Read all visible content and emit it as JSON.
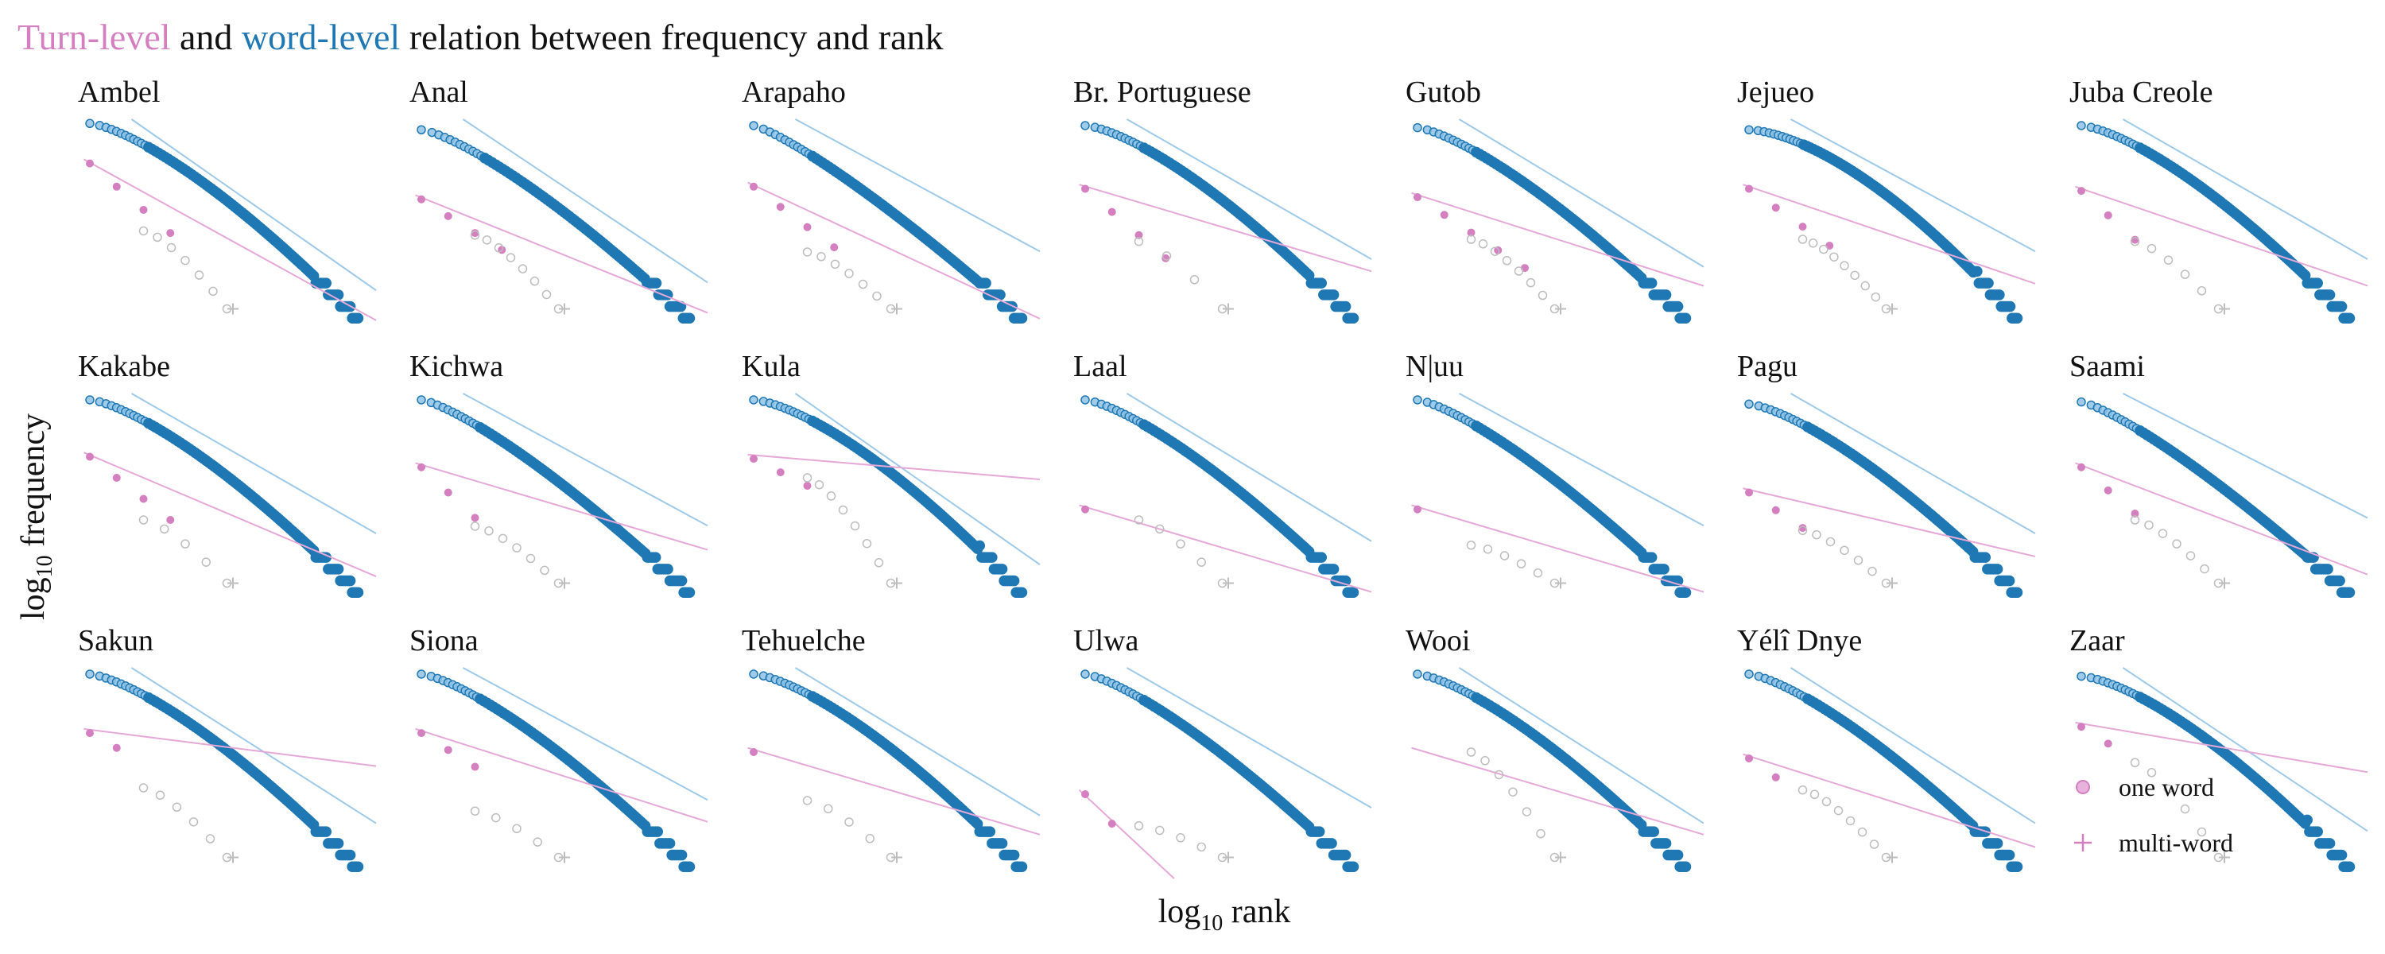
{
  "figure": {
    "title_parts": [
      {
        "text": "Turn-level",
        "color": "#d47fc0"
      },
      {
        "text": "and",
        "color": "#111111"
      },
      {
        "text": "word-level",
        "color": "#1f78b4"
      },
      {
        "text": "relation between frequency and rank",
        "color": "#111111"
      }
    ]
  },
  "colors": {
    "turn": "#d47fc0",
    "word": "#1f78b4",
    "word_fill": "#4aa3d8",
    "grey": "#bdbdbd",
    "fit_turn": "#e6a8d6",
    "fit_word": "#9ec9e8"
  },
  "legend": {
    "items": [
      {
        "marker": "circle",
        "label": "one word"
      },
      {
        "marker": "plus",
        "label": "multi-word"
      }
    ]
  },
  "chart_data": {
    "type": "scatter",
    "facet_layout": {
      "rows": 3,
      "cols": 7
    },
    "xlabel": {
      "base": "log",
      "sub": "10",
      "rest": " rank"
    },
    "ylabel": {
      "base": "log",
      "sub": "10",
      "rest": " frequency"
    },
    "xscale": "log10",
    "yscale": "log10",
    "panels": [
      {
        "name": "Ambel",
        "word": {
          "r0": 0.02,
          "m": 100,
          "curv": 1.0,
          "slope": 1.1
        },
        "turn": {
          "r0": 0.21,
          "n": 4,
          "slope": 1.3,
          "drop": 0.25
        },
        "grey": {
          "r0": 0.53,
          "n": 7,
          "drop": 0.28
        }
      },
      {
        "name": "Anal",
        "word": {
          "r0": 0.05,
          "m": 90,
          "curv": 0.8,
          "slope": 1.05
        },
        "turn": {
          "r0": 0.38,
          "n": 4,
          "slope": 0.95,
          "drop": 0.1
        },
        "grey": {
          "r0": 0.55,
          "n": 8,
          "drop": 0.35
        }
      },
      {
        "name": "Arapaho",
        "word": {
          "r0": 0.03,
          "m": 100,
          "curv": 0.5,
          "slope": 0.85
        },
        "turn": {
          "r0": 0.32,
          "n": 4,
          "slope": 1.1,
          "drop": 0.18
        },
        "grey": {
          "r0": 0.63,
          "n": 7,
          "drop": 0.3
        }
      },
      {
        "name": "Br. Portuguese",
        "word": {
          "r0": 0.03,
          "m": 100,
          "curv": 1.1,
          "slope": 0.9
        },
        "turn": {
          "r0": 0.33,
          "n": 4,
          "slope": 0.7,
          "drop": 0.25
        },
        "grey": {
          "r0": 0.58,
          "n": 4,
          "drop": 0.2
        }
      },
      {
        "name": "Gutob",
        "word": {
          "r0": 0.04,
          "m": 100,
          "curv": 0.9,
          "slope": 0.95
        },
        "turn": {
          "r0": 0.37,
          "n": 5,
          "slope": 0.75,
          "drop": 0.12
        },
        "grey": {
          "r0": 0.57,
          "n": 8,
          "drop": 0.38
        }
      },
      {
        "name": "Jejueo",
        "word": {
          "r0": 0.05,
          "m": 110,
          "curv": 1.6,
          "slope": 0.85
        },
        "turn": {
          "r0": 0.33,
          "n": 4,
          "slope": 0.8,
          "drop": 0.15
        },
        "grey": {
          "r0": 0.57,
          "n": 9,
          "drop": 0.3
        }
      },
      {
        "name": "Juba Creole",
        "word": {
          "r0": 0.03,
          "m": 100,
          "curv": 1.1,
          "slope": 0.9
        },
        "turn": {
          "r0": 0.34,
          "n": 3,
          "slope": 0.8,
          "drop": 0.28
        },
        "grey": {
          "r0": 0.58,
          "n": 6,
          "drop": 0.25
        }
      },
      {
        "name": "Kakabe",
        "word": {
          "r0": 0.03,
          "m": 100,
          "curv": 1.0,
          "slope": 0.9
        },
        "turn": {
          "r0": 0.3,
          "n": 4,
          "slope": 1.0,
          "drop": 0.2
        },
        "grey": {
          "r0": 0.6,
          "n": 5,
          "drop": 0.22
        }
      },
      {
        "name": "Kichwa",
        "word": {
          "r0": 0.03,
          "m": 100,
          "curv": 0.7,
          "slope": 0.85
        },
        "turn": {
          "r0": 0.35,
          "n": 3,
          "slope": 0.7,
          "drop": 0.3
        },
        "grey": {
          "r0": 0.63,
          "n": 7,
          "drop": 0.3
        }
      },
      {
        "name": "Kula",
        "word": {
          "r0": 0.03,
          "m": 100,
          "curv": 1.2,
          "slope": 1.1
        },
        "turn": {
          "r0": 0.31,
          "n": 3,
          "slope": 0.2,
          "drop": 0.02
        },
        "grey": {
          "r0": 0.4,
          "n": 8,
          "drop": 0.4
        }
      },
      {
        "name": "Laal",
        "word": {
          "r0": 0.03,
          "m": 100,
          "curv": 0.9,
          "slope": 0.95
        },
        "turn": {
          "r0": 0.55,
          "n": 1,
          "slope": 0.7,
          "drop": 0.0
        },
        "grey": {
          "r0": 0.6,
          "n": 5,
          "drop": 0.25
        }
      },
      {
        "name": "N|uu",
        "word": {
          "r0": 0.03,
          "m": 100,
          "curv": 0.8,
          "slope": 0.85
        },
        "turn": {
          "r0": 0.55,
          "n": 1,
          "slope": 0.7,
          "drop": 0.0
        },
        "grey": {
          "r0": 0.72,
          "n": 6,
          "drop": 0.2
        }
      },
      {
        "name": "Pagu",
        "word": {
          "r0": 0.05,
          "m": 100,
          "curv": 1.0,
          "slope": 0.9
        },
        "turn": {
          "r0": 0.47,
          "n": 3,
          "slope": 0.55,
          "drop": 0.12
        },
        "grey": {
          "r0": 0.65,
          "n": 7,
          "drop": 0.25
        }
      },
      {
        "name": "Saami",
        "word": {
          "r0": 0.04,
          "m": 100,
          "curv": 0.6,
          "slope": 0.8
        },
        "turn": {
          "r0": 0.35,
          "n": 3,
          "slope": 0.9,
          "drop": 0.25
        },
        "grey": {
          "r0": 0.6,
          "n": 7,
          "drop": 0.3
        }
      },
      {
        "name": "Sakun",
        "word": {
          "r0": 0.03,
          "m": 100,
          "curv": 1.0,
          "slope": 1.0
        },
        "turn": {
          "r0": 0.31,
          "n": 2,
          "slope": 0.3,
          "drop": 0.05
        },
        "grey": {
          "r0": 0.57,
          "n": 6,
          "drop": 0.25
        }
      },
      {
        "name": "Siona",
        "word": {
          "r0": 0.03,
          "m": 100,
          "curv": 0.9,
          "slope": 0.85
        },
        "turn": {
          "r0": 0.31,
          "n": 3,
          "slope": 0.75,
          "drop": 0.1
        },
        "grey": {
          "r0": 0.68,
          "n": 5,
          "drop": 0.25
        }
      },
      {
        "name": "Tehuelche",
        "word": {
          "r0": 0.03,
          "m": 100,
          "curv": 1.1,
          "slope": 0.95
        },
        "turn": {
          "r0": 0.4,
          "n": 1,
          "slope": 0.7,
          "drop": 0.0
        },
        "grey": {
          "r0": 0.63,
          "n": 5,
          "drop": 0.3
        }
      },
      {
        "name": "Ulwa",
        "word": {
          "r0": 0.03,
          "m": 100,
          "curv": 0.8,
          "slope": 0.9
        },
        "turn": {
          "r0": 0.6,
          "n": 2,
          "slope": 2.2,
          "drop": 0.4
        },
        "grey": {
          "r0": 0.75,
          "n": 5,
          "drop": 0.15
        }
      },
      {
        "name": "Wooi",
        "word": {
          "r0": 0.03,
          "m": 100,
          "curv": 1.0,
          "slope": 1.0
        },
        "turn": {
          "r0": 0.4,
          "n": 0,
          "slope": 0.7,
          "drop": 0.0
        },
        "grey": {
          "r0": 0.4,
          "n": 7,
          "drop": 0.35
        }
      },
      {
        "name": "Yélî Dnye",
        "word": {
          "r0": 0.03,
          "m": 100,
          "curv": 0.9,
          "slope": 1.0
        },
        "turn": {
          "r0": 0.43,
          "n": 2,
          "slope": 0.75,
          "drop": 0.15
        },
        "grey": {
          "r0": 0.58,
          "n": 8,
          "drop": 0.35
        }
      },
      {
        "name": "Zaar",
        "word": {
          "r0": 0.04,
          "m": 100,
          "curv": 1.2,
          "slope": 1.05
        },
        "turn": {
          "r0": 0.28,
          "n": 2,
          "slope": 0.4,
          "drop": 0.1
        },
        "grey": {
          "r0": 0.45,
          "n": 6,
          "drop": 0.25
        }
      }
    ]
  }
}
